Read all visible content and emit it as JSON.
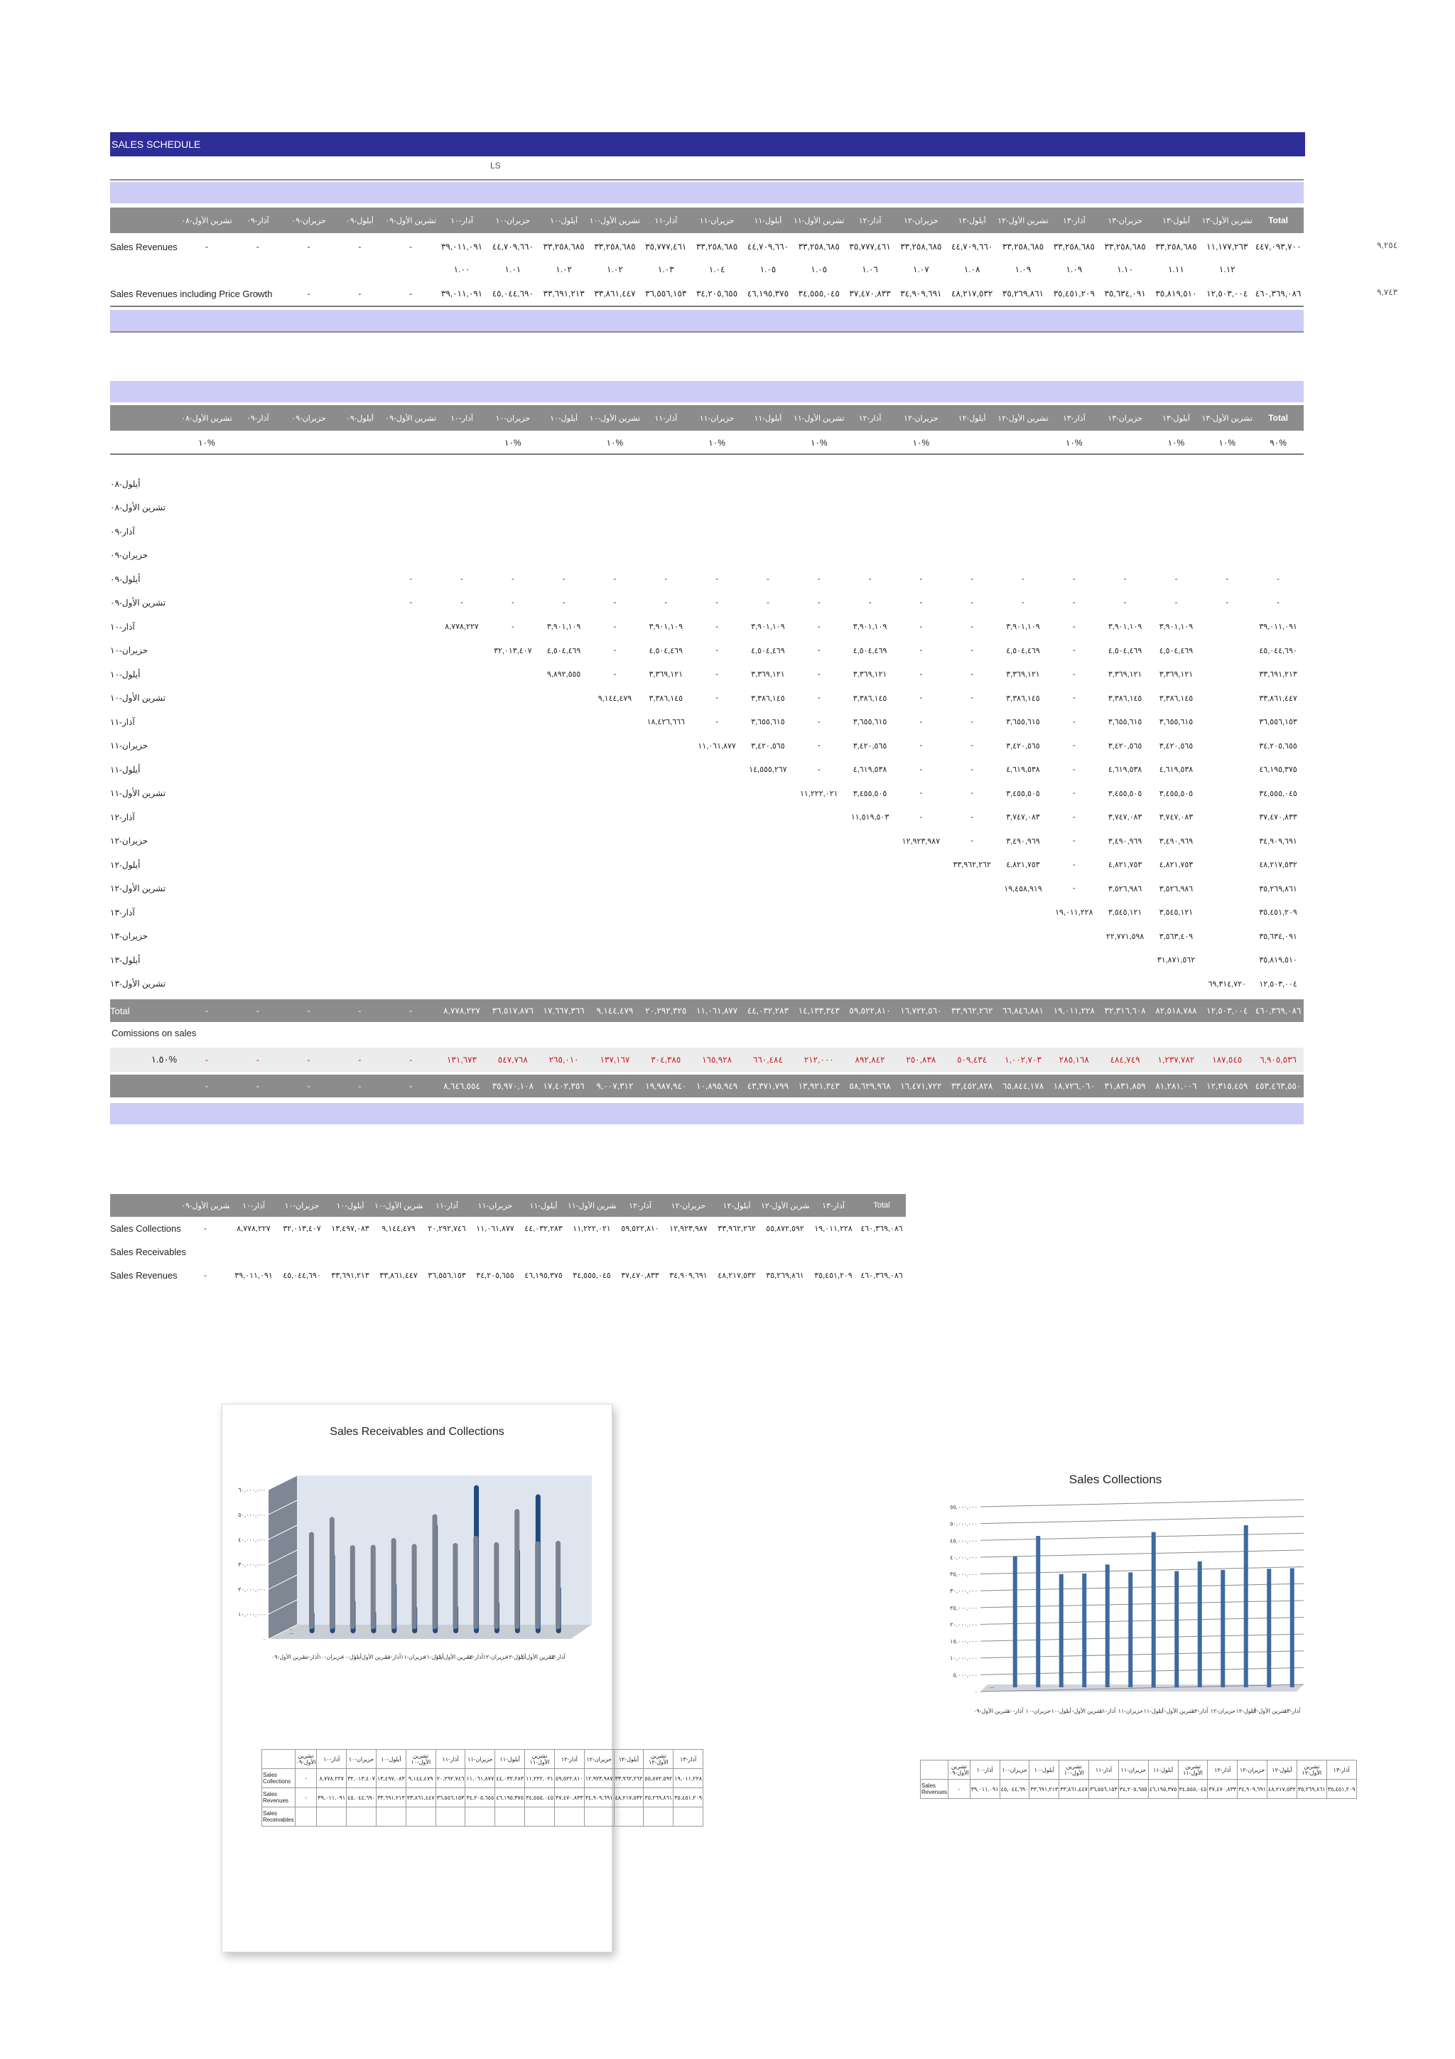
{
  "title": "SALES SCHEDULE",
  "unit_label": "LS",
  "month_headers": [
    "أيلول-٠٨",
    "تشرين الأول-٠٨",
    "آذار-٠٩",
    "حزيران-٠٩",
    "أيلول-٠٩",
    "تشرين الأول-٠٩",
    "آذار-١٠",
    "حزيران-١٠",
    "أيلول-١٠",
    "تشرين الأول-١٠",
    "آذار-١١",
    "حزيران-١١",
    "أيلول-١١",
    "تشرين الأول-١١",
    "آذار-١٢",
    "حزيران-١٢",
    "أيلول-١٢",
    "تشرين الأول-١٢",
    "آذار-١٣",
    "حزيران-١٣",
    "أيلول-١٣",
    "تشرين الأول-١٣"
  ],
  "total_label": "Total",
  "section1": {
    "sales_revenues_label": "Sales Revenues",
    "sales_revenues": [
      "-",
      "-",
      "-",
      "-",
      "-",
      "-",
      "٣٩,٠١١,٠٩١",
      "٤٤,٧٠٩,٦٦٠",
      "٣٣,٢٥٨,٦٨٥",
      "٣٣,٢٥٨,٦٨٥",
      "٣٥,٧٧٧,٤٦١",
      "٣٣,٢٥٨,٦٨٥",
      "٤٤,٧٠٩,٦٦٠",
      "٣٣,٢٥٨,٦٨٥",
      "٣٥,٧٧٧,٤٦١",
      "٣٣,٢٥٨,٦٨٥",
      "٤٤,٧٠٩,٦٦٠",
      "٣٣,٢٥٨,٦٨٥",
      "٣٣,٢٥٨,٦٨٥",
      "٣٣,٢٥٨,٦٨٥",
      "٣٣,٢٥٨,٦٨٥",
      "١١,١٧٧,٢٦٣"
    ],
    "sales_revenues_total": "٤٤٧,٠٩٣,٧٠٠",
    "sales_revenues_side": "٩,٢٥٤",
    "growth_factors": [
      "١.٠٠",
      "١.٠١",
      "١.٠٢",
      "١.٠٢",
      "١.٠٣",
      "١.٠٤",
      "١.٠٥",
      "١.٠٥",
      "١.٠٦",
      "١.٠٧",
      "١.٠٨",
      "١.٠٩",
      "١.٠٩",
      "١.١٠",
      "١.١١",
      "١.١٢"
    ],
    "incl_growth_label": "Sales Revenues including Price Growth",
    "incl_growth": [
      "-",
      "-",
      "-",
      "-",
      "-",
      "-",
      "٣٩,٠١١,٠٩١",
      "٤٥,٠٤٤,٦٩٠",
      "٣٣,٦٩١,٢١٣",
      "٣٣,٨٦١,٤٤٧",
      "٣٦,٥٥٦,١٥٣",
      "٣٤,٢٠٥,٦٥٥",
      "٤٦,١٩٥,٣٧٥",
      "٣٤,٥٥٥,٠٤٥",
      "٣٧,٤٧٠,٨٣٣",
      "٣٤,٩٠٩,٦٩١",
      "٤٨,٢١٧,٥٣٢",
      "٣٥,٢٦٩,٨٦١",
      "٣٥,٤٥١,٢٠٩",
      "٣٥,٦٣٤,٠٩١",
      "٣٥,٨١٩,٥١٠",
      "١٢,٥٠٣,٠٠٤"
    ],
    "incl_growth_total": "٤٦٠,٣٦٩,٠٨٦",
    "incl_growth_side": "٩,٧٤٣"
  },
  "section2": {
    "percent_row": [
      "",
      "١٠%",
      "",
      "",
      "",
      "",
      "",
      "١٠%",
      "",
      "١٠%",
      "",
      "١٠%",
      "",
      "١٠%",
      "",
      "١٠%",
      "",
      "",
      "١٠%",
      "",
      "١٠%",
      "١٠%"
    ],
    "percent_total": "٩٠%",
    "row_labels": [
      "أيلول-٠٨",
      "تشرين الأول-٠٨",
      "آذار-٠٩",
      "حزيران-٠٩",
      "أيلول-٠٩",
      "تشرين الأول-٠٩",
      "آذار-١٠",
      "حزيران-١٠",
      "أيلول-١٠",
      "تشرين الأول-١٠",
      "آذار-١١",
      "حزيران-١١",
      "أيلول-١١",
      "تشرين الأول-١١",
      "آذار-١٢",
      "حزيران-١٢",
      "أيلول-١٢",
      "تشرين الأول-١٢",
      "آذار-١٣",
      "حزيران-١٣",
      "أيلول-١٣",
      "تشرين الأول-١٣"
    ],
    "matrix": [
      [
        "",
        "",
        "",
        "",
        "",
        "",
        "",
        "",
        "",
        "",
        "",
        "",
        "",
        "",
        "",
        "",
        "",
        "",
        "",
        "",
        "",
        "",
        "",
        ""
      ],
      [
        "",
        "",
        "",
        "",
        "",
        "",
        "",
        "",
        "",
        "",
        "",
        "",
        "",
        "",
        "",
        "",
        "",
        "",
        "",
        "",
        "",
        "",
        "",
        ""
      ],
      [
        "",
        "",
        "",
        "",
        "",
        "",
        "",
        "",
        "",
        "",
        "",
        "",
        "",
        "",
        "",
        "",
        "",
        "",
        "",
        "",
        "",
        "",
        "",
        ""
      ],
      [
        "",
        "",
        "",
        "",
        "",
        "",
        "",
        "",
        "",
        "",
        "",
        "",
        "",
        "",
        "",
        "",
        "",
        "",
        "",
        "",
        "",
        "",
        "",
        ""
      ],
      [
        "",
        "",
        "",
        "",
        "",
        "-",
        "-",
        "-",
        "-",
        "-",
        "-",
        "-",
        "-",
        "-",
        "-",
        "-",
        "-",
        "-",
        "-",
        "-",
        "-",
        "-",
        "-",
        "-"
      ],
      [
        "",
        "",
        "",
        "",
        "",
        "-",
        "-",
        "-",
        "-",
        "-",
        "-",
        "-",
        "-",
        "-",
        "-",
        "-",
        "-",
        "-",
        "-",
        "-",
        "-",
        "-",
        "-",
        "-"
      ],
      [
        "",
        "",
        "",
        "",
        "",
        "",
        "٨,٧٧٨,٢٢٧",
        "-",
        "٣,٩٠١,١٠٩",
        "-",
        "٣,٩٠١,١٠٩",
        "-",
        "٣,٩٠١,١٠٩",
        "-",
        "٣,٩٠١,١٠٩",
        "-",
        "-",
        "٣,٩٠١,١٠٩",
        "-",
        "٣,٩٠١,١٠٩",
        "٣,٩٠١,١٠٩",
        "",
        ""
      ],
      [
        "",
        "",
        "",
        "",
        "",
        "",
        "",
        "٣٢,٠١٣,٤٠٧",
        "٤,٥٠٤,٤٦٩",
        "-",
        "٤,٥٠٤,٤٦٩",
        "-",
        "٤,٥٠٤,٤٦٩",
        "-",
        "٤,٥٠٤,٤٦٩",
        "-",
        "-",
        "٤,٥٠٤,٤٦٩",
        "-",
        "٤,٥٠٤,٤٦٩",
        "٤,٥٠٤,٤٦٩",
        "",
        ""
      ],
      [
        "",
        "",
        "",
        "",
        "",
        "",
        "",
        "",
        "٩,٨٩٢,٥٥٥",
        "-",
        "٣,٣٦٩,١٢١",
        "-",
        "٣,٣٦٩,١٢١",
        "-",
        "٣,٣٦٩,١٢١",
        "-",
        "-",
        "٣,٣٦٩,١٢١",
        "-",
        "٣,٣٦٩,١٢١",
        "٣,٣٦٩,١٢١",
        "",
        ""
      ],
      [
        "",
        "",
        "",
        "",
        "",
        "",
        "",
        "",
        "",
        "٩,١٤٤,٤٧٩",
        "٣,٣٨٦,١٤٥",
        "-",
        "٣,٣٨٦,١٤٥",
        "-",
        "٣,٣٨٦,١٤٥",
        "-",
        "-",
        "٣,٣٨٦,١٤٥",
        "-",
        "٣,٣٨٦,١٤٥",
        "٣,٣٨٦,١٤٥",
        "",
        ""
      ],
      [
        "",
        "",
        "",
        "",
        "",
        "",
        "",
        "",
        "",
        "",
        "١٨,٤٢٦,٦٦٦",
        "-",
        "٣,٦٥٥,٦١٥",
        "-",
        "٣,٦٥٥,٦١٥",
        "-",
        "-",
        "٣,٦٥٥,٦١٥",
        "-",
        "٣,٦٥٥,٦١٥",
        "٣,٦٥٥,٦١٥",
        "",
        ""
      ],
      [
        "",
        "",
        "",
        "",
        "",
        "",
        "",
        "",
        "",
        "",
        "",
        "١١,٠٦١,٨٧٧",
        "٣,٤٢٠,٥٦٥",
        "-",
        "٣,٤٢٠,٥٦٥",
        "-",
        "-",
        "٣,٤٢٠,٥٦٥",
        "-",
        "٣,٤٢٠,٥٦٥",
        "٣,٤٢٠,٥٦٥",
        "",
        ""
      ],
      [
        "",
        "",
        "",
        "",
        "",
        "",
        "",
        "",
        "",
        "",
        "",
        "",
        "١٤,٥٥٥,٢٦٧",
        "-",
        "٤,٦١٩,٥٣٨",
        "-",
        "-",
        "٤,٦١٩,٥٣٨",
        "-",
        "٤,٦١٩,٥٣٨",
        "٤,٦١٩,٥٣٨",
        "",
        ""
      ],
      [
        "",
        "",
        "",
        "",
        "",
        "",
        "",
        "",
        "",
        "",
        "",
        "",
        "",
        "١١,٢٢٢,٠٢١",
        "٣,٤٥٥,٥٠٥",
        "-",
        "-",
        "٣,٤٥٥,٥٠٥",
        "-",
        "٣,٤٥٥,٥٠٥",
        "٣,٤٥٥,٥٠٥",
        "",
        ""
      ],
      [
        "",
        "",
        "",
        "",
        "",
        "",
        "",
        "",
        "",
        "",
        "",
        "",
        "",
        "",
        "١١,٥١٩,٥٠٣",
        "-",
        "-",
        "٣,٧٤٧,٠٨٣",
        "-",
        "٣,٧٤٧,٠٨٣",
        "٣,٧٤٧,٠٨٣",
        "",
        ""
      ],
      [
        "",
        "",
        "",
        "",
        "",
        "",
        "",
        "",
        "",
        "",
        "",
        "",
        "",
        "",
        "",
        "١٢,٩٢٣,٩٨٧",
        "-",
        "٣,٤٩٠,٩٦٩",
        "-",
        "٣,٤٩٠,٩٦٩",
        "٣,٤٩٠,٩٦٩",
        "",
        ""
      ],
      [
        "",
        "",
        "",
        "",
        "",
        "",
        "",
        "",
        "",
        "",
        "",
        "",
        "",
        "",
        "",
        "",
        "٣٣,٩٦٢,٢٦٢",
        "٤,٨٢١,٧٥٣",
        "-",
        "٤,٨٢١,٧٥٣",
        "٤,٨٢١,٧٥٣",
        "",
        ""
      ],
      [
        "",
        "",
        "",
        "",
        "",
        "",
        "",
        "",
        "",
        "",
        "",
        "",
        "",
        "",
        "",
        "",
        "",
        "١٩,٤٥٨,٩١٩",
        "-",
        "٣,٥٢٦,٩٨٦",
        "٣,٥٢٦,٩٨٦",
        "",
        ""
      ],
      [
        "",
        "",
        "",
        "",
        "",
        "",
        "",
        "",
        "",
        "",
        "",
        "",
        "",
        "",
        "",
        "",
        "",
        "",
        "١٩,٠١١,٢٢٨",
        "٣,٥٤٥,١٢١",
        "٣,٥٤٥,١٢١",
        "",
        ""
      ],
      [
        "",
        "",
        "",
        "",
        "",
        "",
        "",
        "",
        "",
        "",
        "",
        "",
        "",
        "",
        "",
        "",
        "",
        "",
        "",
        "٢٢,٧٧١,٥٩٨",
        "٣,٥٦٣,٤٠٩",
        "",
        ""
      ],
      [
        "",
        "",
        "",
        "",
        "",
        "",
        "",
        "",
        "",
        "",
        "",
        "",
        "",
        "",
        "",
        "",
        "",
        "",
        "",
        "",
        "٣١,٨٧١,٥٦٢",
        "",
        ""
      ],
      [
        "",
        "",
        "",
        "",
        "",
        "",
        "",
        "",
        "",
        "",
        "",
        "",
        "",
        "",
        "",
        "",
        "",
        "",
        "",
        "",
        "",
        "٦٩,٣١٤,٧٢٠",
        "",
        ""
      ]
    ],
    "row_totals": [
      "",
      "",
      "",
      "",
      "-",
      "-",
      "٣٩,٠١١,٠٩١",
      "٤٥,٠٤٤,٦٩٠",
      "٣٣,٦٩١,٢١٣",
      "٣٣,٨٦١,٤٤٧",
      "٣٦,٥٥٦,١٥٣",
      "٣٤,٢٠٥,٦٥٥",
      "٤٦,١٩٥,٣٧٥",
      "٣٤,٥٥٥,٠٤٥",
      "٣٧,٤٧٠,٨٣٣",
      "٣٤,٩٠٩,٦٩١",
      "٤٨,٢١٧,٥٣٢",
      "٣٥,٢٦٩,٨٦١",
      "٣٥,٤٥١,٢٠٩",
      "٣٥,٦٣٤,٠٩١",
      "٣٥,٨١٩,٥١٠",
      "١٢,٥٠٣,٠٠٤"
    ],
    "total_row": [
      "-",
      "-",
      "-",
      "-",
      "-",
      "-",
      "٨,٧٧٨,٢٢٧",
      "٣٦,٥١٧,٨٧٦",
      "١٧,٦٦٧,٣٦٦",
      "٩,١٤٤,٤٧٩",
      "٢٠,٢٩٢,٣٢٥",
      "١١,٠٦١,٨٧٧",
      "٤٤,٠٣٢,٢٨٣",
      "١٤,١٣٣,٣٤٣",
      "٥٩,٥٢٢,٨١٠",
      "١٦,٧٢٢,٥٦٠",
      "٣٣,٩٦٢,٢٦٢",
      "٦٦,٨٤٦,٨٨١",
      "١٩,٠١١,٢٢٨",
      "٣٢,٣١٦,٦٠٨",
      "٨٢,٥١٨,٧٨٨",
      "١٢,٥٠٣,٠٠٤"
    ],
    "total_row_total": "٤٦٠,٣٦٩,٠٨٦",
    "commissions_label": "Comissions on sales",
    "commissions_rate": "١.٥٠%",
    "commissions": [
      "-",
      "-",
      "-",
      "-",
      "-",
      "-",
      "١٣١,٦٧٣",
      "٥٤٧,٧٦٨",
      "٢٦٥,٠١٠",
      "١٣٧,١٦٧",
      "٣٠٤,٣٨٥",
      "١٦٥,٩٢٨",
      "٦٦٠,٤٨٤",
      "٢١٢,٠٠٠",
      "٨٩٢,٨٤٢",
      "٢٥٠,٨٣٨",
      "٥٠٩,٤٣٤",
      "١,٠٠٢,٧٠٣",
      "٢٨٥,١٦٨",
      "٤٨٤,٧٤٩",
      "١,٢٣٧,٧٨٢",
      "١٨٧,٥٤٥"
    ],
    "commissions_total": "٦,٩٠٥,٥٣٦",
    "net_row": [
      "-",
      "-",
      "-",
      "-",
      "-",
      "-",
      "٨,٦٤٦,٥٥٤",
      "٣٥,٩٧٠,١٠٨",
      "١٧,٤٠٢,٣٥٦",
      "٩,٠٠٧,٣١٢",
      "١٩,٩٨٧,٩٤٠",
      "١٠,٨٩٥,٩٤٩",
      "٤٣,٣٧١,٧٩٩",
      "١٣,٩٢١,٣٤٣",
      "٥٨,٦٢٩,٩٦٨",
      "١٦,٤٧١,٧٢٢",
      "٣٣,٤٥٢,٨٢٨",
      "٦٥,٨٤٤,١٧٨",
      "١٨,٧٢٦,٠٦٠",
      "٣١,٨٣١,٨٥٩",
      "٨١,٢٨١,٠٠٦",
      "١٢,٣١٥,٤٥٩"
    ],
    "net_total": "٤٥٣,٤٦٣,٥٥٠"
  },
  "section3": {
    "headers": [
      "تشرين الأول-٠٩",
      "آذار-١٠",
      "حزيران-١٠",
      "أيلول-١٠",
      "تشرين الأول-١٠",
      "آذار-١١",
      "حزيران-١١",
      "أيلول-١١",
      "تشرين الأول-١١",
      "آذار-١٢",
      "حزيران-١٢",
      "أيلول-١٢",
      "تشرين الأول-١٢",
      "آذار-١٣",
      "Total"
    ],
    "rows": [
      {
        "label": "Sales Collections",
        "values": [
          "-",
          "٨,٧٧٨,٢٢٧",
          "٣٢,٠١٣,٤٠٧",
          "١٣,٤٩٧,٠٨٣",
          "٩,١٤٤,٤٧٩",
          "٢٠,٢٩٢,٧٤٦",
          "١١,٠٦١,٨٧٧",
          "٤٤,٠٣٢,٢٨٣",
          "١١,٢٢٢,٠٢١",
          "٥٩,٥٢٢,٨١٠",
          "١٢,٩٢٣,٩٨٧",
          "٣٣,٩٦٢,٢٦٢",
          "٥٥,٨٧٢,٥٩٢",
          "١٩,٠١١,٢٢٨",
          "٤٦٠,٣٦٩,٠٨٦"
        ]
      },
      {
        "label": "Sales Receivables",
        "values": [
          "",
          "",
          "",
          "",
          "",
          "",
          "",
          "",
          "",
          "",
          "",
          "",
          "",
          "",
          ""
        ]
      },
      {
        "label": "Sales Revenues",
        "values": [
          "-",
          "٣٩,٠١١,٠٩١",
          "٤٥,٠٤٤,٦٩٠",
          "٣٣,٦٩١,٢١٣",
          "٣٣,٨٦١,٤٤٧",
          "٣٦,٥٥٦,١٥٣",
          "٣٤,٢٠٥,٦٥٥",
          "٤٦,١٩٥,٣٧٥",
          "٣٤,٥٥٥,٠٤٥",
          "٣٧,٤٧٠,٨٣٣",
          "٣٤,٩٠٩,٦٩١",
          "٤٨,٢١٧,٥٣٢",
          "٣٥,٢٦٩,٨٦١",
          "٣٥,٤٥١,٢٠٩",
          "٤٦٠,٣٦٩,٠٨٦"
        ]
      }
    ]
  },
  "chart_data": [
    {
      "type": "bar",
      "title": "Sales Receivables and Collections",
      "categories": [
        "تشرين الأول-٠٩",
        "آذار-١٠",
        "حزيران-١٠",
        "أيلول-١٠",
        "تشرين الأول-١٠",
        "آذار-١١",
        "حزيران-١١",
        "أيلول-١١",
        "تشرين الأول-١١",
        "آذار-١٢",
        "حزيران-١٢",
        "أيلول-١٢",
        "تشرين الأول-١٢",
        "آذار-١٣"
      ],
      "y_ticks": [
        "٠",
        "١٠,٠٠٠,٠٠٠",
        "٢٠,٠٠٠,٠٠٠",
        "٣٠,٠٠٠,٠٠٠",
        "٤٠,٠٠٠,٠٠٠",
        "٥٠,٠٠٠,٠٠٠",
        "٦٠,٠٠٠,٠٠٠"
      ],
      "ylim": [
        0,
        60000000
      ],
      "series": [
        {
          "name": "Sales Collections",
          "values": [
            0,
            8778227,
            32013407,
            13497083,
            9144479,
            20292746,
            11061877,
            44032283,
            11222021,
            59522810,
            12923987,
            33962262,
            55872592,
            19011228
          ]
        },
        {
          "name": "Sales Revenues",
          "values": [
            0,
            39011091,
            45044690,
            33691213,
            33861447,
            36556153,
            34205655,
            46195375,
            34555045,
            37470833,
            34909691,
            48217532,
            35269861,
            35451209
          ]
        },
        {
          "name": "Sales Receivables",
          "values": [
            0,
            0,
            0,
            0,
            0,
            0,
            0,
            0,
            0,
            0,
            0,
            0,
            0,
            0
          ]
        }
      ],
      "table_values": {
        "Sales Collections": [
          "-",
          "٨,٧٧٨,٢٢٧",
          "٣٢,٠١٣,٤٠٧",
          "١٣,٤٩٧,٠٨٣",
          "٩,١٤٤,٤٧٩",
          "٢٠,٢٩٢,٧٤٦",
          "١١,٠٦١,٨٧٧",
          "٤٤,٠٣٢,٢٨٣",
          "١١,٢٢٢,٠٢١",
          "٥٩,٥٢٢,٨١٠",
          "١٢,٩٢٣,٩٨٧",
          "٣٣,٩٦٢,٢٦٢",
          "٥٥,٨٧٢,٥٩٢",
          "١٩,٠١١,٢٢٨"
        ],
        "Sales Revenues": [
          "-",
          "٣٩,٠١١,٠٩١",
          "٤٥,٠٤٤,٦٩٠",
          "٣٣,٦٩١,٢١٣",
          "٣٣,٨٦١,٤٤٧",
          "٣٦,٥٥٦,١٥٣",
          "٣٤,٢٠٥,٦٥٥",
          "٤٦,١٩٥,٣٧٥",
          "٣٤,٥٥٥,٠٤٥",
          "٣٧,٤٧٠,٨٣٣",
          "٣٤,٩٠٩,٦٩١",
          "٤٨,٢١٧,٥٣٢",
          "٣٥,٢٦٩,٨٦١",
          "٣٥,٤٥١,٢٠٩"
        ],
        "Sales Receivables": [
          "",
          "",
          "",
          "",
          "",
          "",
          "",
          "",
          "",
          "",
          "",
          "",
          "",
          ""
        ]
      }
    },
    {
      "type": "bar",
      "title": "Sales Collections",
      "categories": [
        "تشرين الأول-٠٩",
        "آذار-١٠",
        "حزيران-١٠",
        "أيلول-١٠",
        "تشرين الأول-١٠",
        "آذار-١١",
        "حزيران-١١",
        "أيلول-١١",
        "تشرين الأول-١١",
        "آذار-١٢",
        "حزيران-١٢",
        "أيلول-١٢",
        "تشرين الأول-١٢",
        "آذار-١٣"
      ],
      "y_ticks": [
        "٠",
        "٥,٠٠٠,٠٠٠",
        "١٠,٠٠٠,٠٠٠",
        "١٥,٠٠٠,٠٠٠",
        "٢٠,٠٠٠,٠٠٠",
        "٢٥,٠٠٠,٠٠٠",
        "٣٠,٠٠٠,٠٠٠",
        "٣٥,٠٠٠,٠٠٠",
        "٤٠,٠٠٠,٠٠٠",
        "٤٥,٠٠٠,٠٠٠",
        "٥٠,٠٠٠,٠٠٠",
        "٥٥,٠٠٠,٠٠٠"
      ],
      "ylim": [
        0,
        55000000
      ],
      "series": [
        {
          "name": "Sales Revenues",
          "values": [
            0,
            39011091,
            45044690,
            33691213,
            33861447,
            36556153,
            34205655,
            46195375,
            34555045,
            37470833,
            34909691,
            48217532,
            35269861,
            35451209
          ]
        }
      ],
      "table_values": {
        "Sales Revenues": [
          "-",
          "٣٩,٠١١,٠٩١",
          "٤٥,٠٤٤,٦٩٠",
          "٣٣,٦٩١,٢١٣",
          "٣٣,٨٦١,٤٤٧",
          "٣٦,٥٥٦,١٥٣",
          "٣٤,٢٠٥,٦٥٥",
          "٤٦,١٩٥,٣٧٥",
          "٣٤,٥٥٥,٠٤٥",
          "٣٧,٤٧٠,٨٣٣",
          "٣٤,٩٠٩,٦٩١",
          "٤٨,٢١٧,٥٣٢",
          "٣٥,٢٦٩,٨٦١",
          "٣٥,٤٥١,٢٠٩"
        ]
      }
    }
  ]
}
